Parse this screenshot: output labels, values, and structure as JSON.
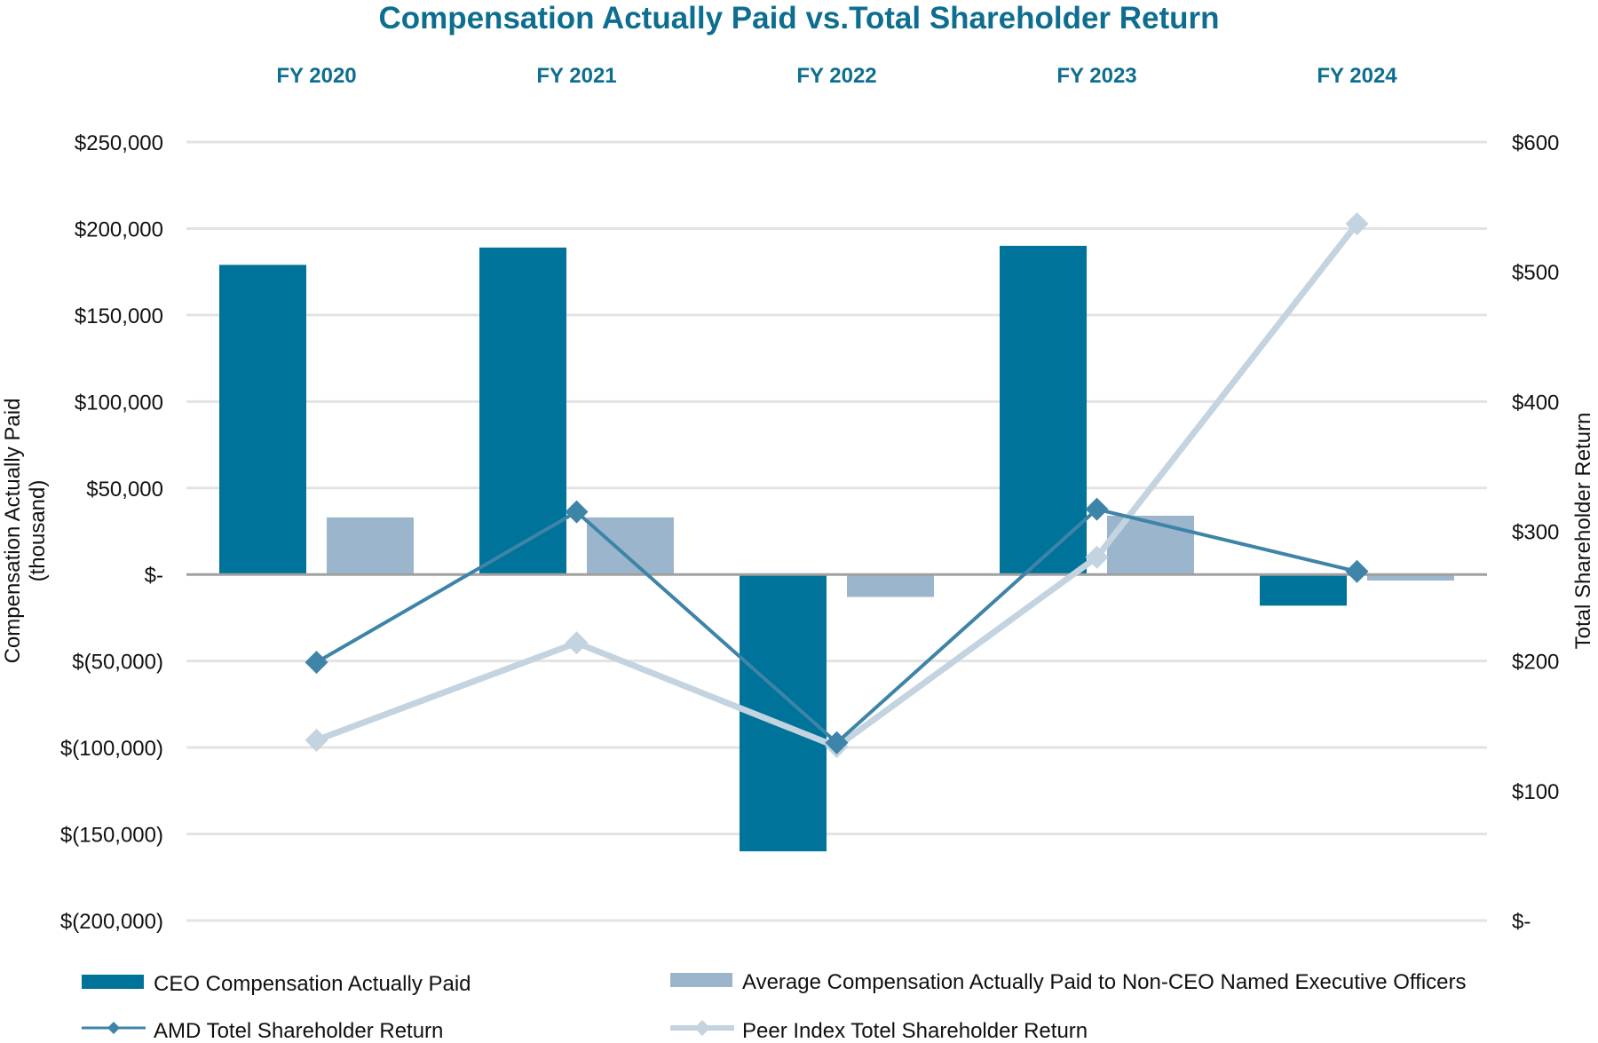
{
  "chart_data": {
    "type": "bar",
    "title": "Compensation Actually Paid vs.Total Shareholder Return",
    "categories": [
      "FY 2020",
      "FY 2021",
      "FY 2022",
      "FY 2023",
      "FY 2024"
    ],
    "ylabel_left": [
      "Compensation Actually Paid",
      "(thousand)"
    ],
    "ylabel_right": "Total Shareholder Return",
    "ylim_left": [
      -200000,
      250000
    ],
    "ylim_right": [
      0,
      600
    ],
    "left_ticks": [
      {
        "v": 250000,
        "label": "$250,000"
      },
      {
        "v": 200000,
        "label": "$200,000"
      },
      {
        "v": 150000,
        "label": "$150,000"
      },
      {
        "v": 100000,
        "label": "$100,000"
      },
      {
        "v": 50000,
        "label": "$50,000"
      },
      {
        "v": 0,
        "label": "$-"
      },
      {
        "v": -50000,
        "label": "$(50,000)"
      },
      {
        "v": -100000,
        "label": "$(100,000)"
      },
      {
        "v": -150000,
        "label": "$(150,000)"
      },
      {
        "v": -200000,
        "label": "$(200,000)"
      }
    ],
    "right_ticks": [
      {
        "v": 600,
        "label": "$600"
      },
      {
        "v": 500,
        "label": "$500"
      },
      {
        "v": 400,
        "label": "$400"
      },
      {
        "v": 300,
        "label": "$300"
      },
      {
        "v": 200,
        "label": "$200"
      },
      {
        "v": 100,
        "label": "$100"
      },
      {
        "v": 0,
        "label": "$-"
      }
    ],
    "grid": true,
    "legend_position": "bottom",
    "series": [
      {
        "name": "CEO Compensation Actually Paid",
        "kind": "bar",
        "axis": "left",
        "color": "#00739a",
        "values": [
          179000,
          189000,
          -160000,
          190000,
          -18000
        ]
      },
      {
        "name": "Average Compensation Actually Paid to Non-CEO Named Executive Officers",
        "kind": "bar",
        "axis": "left",
        "color": "#9bb6cc",
        "values": [
          33000,
          33000,
          -13000,
          34000,
          -3500
        ]
      },
      {
        "name": "AMD Totel Shareholder Return",
        "kind": "line",
        "axis": "right",
        "color": "#3e84a8",
        "values": [
          199,
          315,
          137,
          317,
          269
        ]
      },
      {
        "name": "Peer Index Totel Shareholder Return",
        "kind": "line",
        "axis": "right",
        "color": "#c3d3e0",
        "values": [
          139,
          214,
          134,
          280,
          537
        ]
      }
    ]
  },
  "colors": {
    "title": "#0e6e8f",
    "category_label": "#0e6e8f",
    "gridline": "#e3e3e3",
    "zero_line": "#a0a0a0",
    "axis_text": "#111111"
  }
}
